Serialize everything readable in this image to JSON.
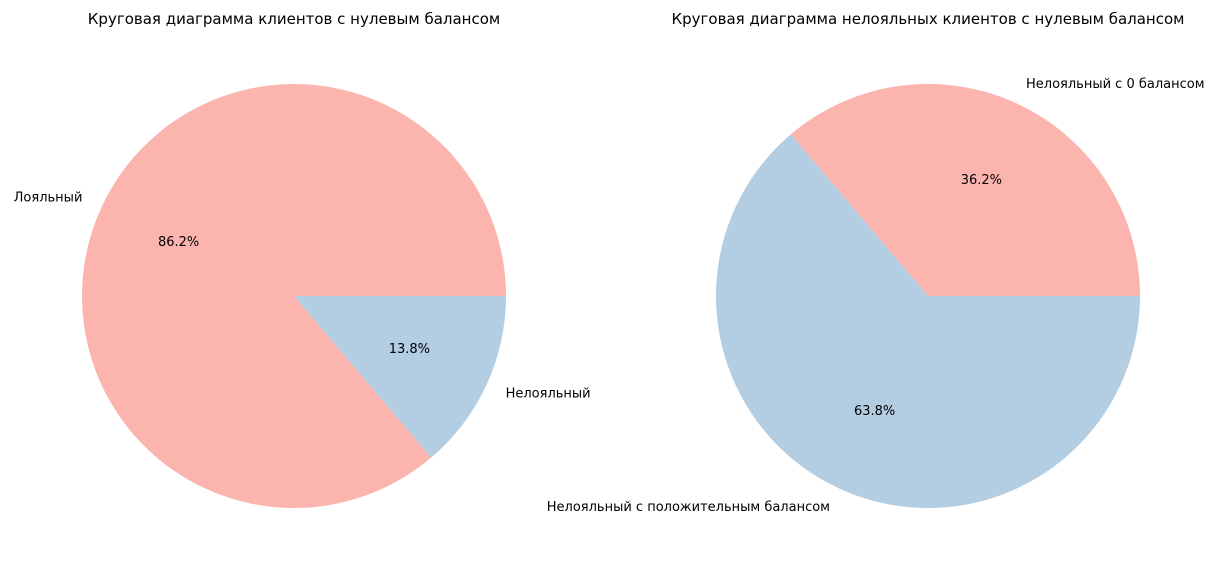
{
  "chart_data": [
    {
      "type": "pie",
      "title": "Круговая диаграмма клиентов с нулевым балансом",
      "slices": [
        {
          "label": "Лояльный",
          "value": 86.2,
          "pct_text": "86.2%",
          "color": "#fbb4ae"
        },
        {
          "label": "Нелояльный",
          "value": 13.8,
          "pct_text": "13.8%",
          "color": "#b3cde3"
        }
      ],
      "start_angle_deg": 0,
      "direction": "counterclockwise"
    },
    {
      "type": "pie",
      "title": "Круговая диаграмма нелояльных клиентов с нулевым балансом",
      "slices": [
        {
          "label": "Нелояльный с 0 балансом",
          "value": 36.2,
          "pct_text": "36.2%",
          "color": "#fbb4ae"
        },
        {
          "label": "Нелояльный с положительным балансом",
          "value": 63.8,
          "pct_text": "63.8%",
          "color": "#b3cde3"
        }
      ],
      "start_angle_deg": 0,
      "direction": "counterclockwise"
    }
  ]
}
